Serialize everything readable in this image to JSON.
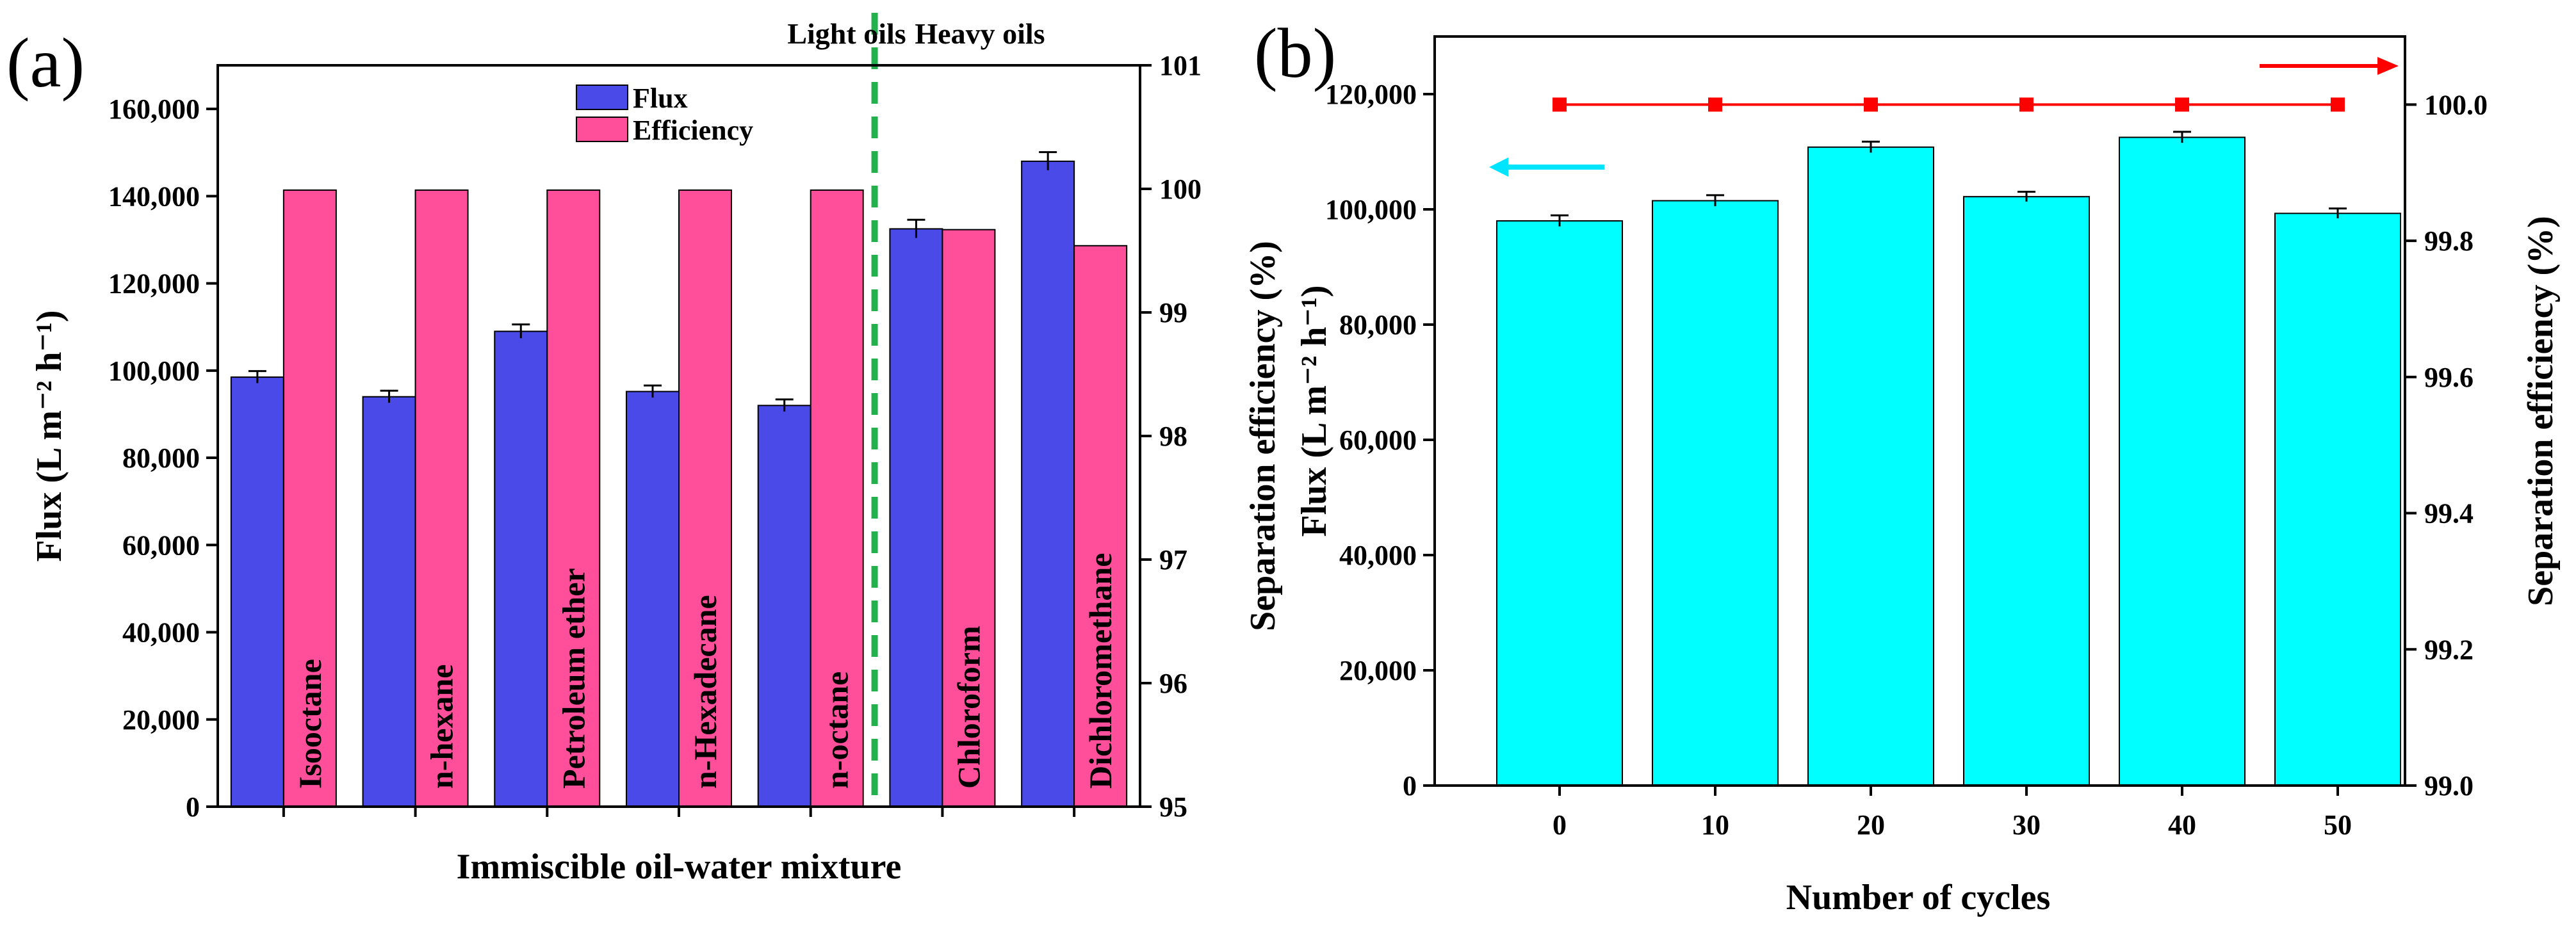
{
  "chart_data": [
    {
      "panel": "(a)",
      "type": "bar",
      "xlabel": "Immiscible oil-water mixture",
      "ylabel": "Flux (L m⁻² h⁻¹)",
      "y2label": "Separation efficiency (%)",
      "ylim": [
        0,
        170000
      ],
      "y2lim": [
        95,
        101
      ],
      "yticks": [
        0,
        20000,
        40000,
        60000,
        80000,
        100000,
        120000,
        140000,
        160000
      ],
      "ytick_labels": [
        "0",
        "20,000",
        "40,000",
        "60,000",
        "80,000",
        "100,000",
        "120,000",
        "140,000",
        "160,000"
      ],
      "y2ticks": [
        95,
        96,
        97,
        98,
        99,
        100,
        101
      ],
      "y2tick_labels": [
        "95",
        "96",
        "97",
        "98",
        "99",
        "100",
        "101"
      ],
      "categories": [
        "Isooctane",
        "n-hexane",
        "Petroleum ether",
        "n-Hexadecane",
        "n-octane",
        "Chloroform",
        "Dichloromethane"
      ],
      "series": [
        {
          "name": "Flux",
          "axis": "left",
          "color": "#4a4ae8",
          "values": [
            98500,
            94000,
            109000,
            95200,
            92000,
            132500,
            148000
          ],
          "errors": [
            500,
            500,
            700,
            500,
            500,
            1200,
            1200
          ]
        },
        {
          "name": "Efficiency",
          "axis": "right",
          "color": "#ff4f9b",
          "values": [
            99.99,
            99.99,
            99.99,
            99.99,
            99.99,
            99.67,
            99.54
          ]
        }
      ],
      "legend": [
        "Flux",
        "Efficiency"
      ],
      "regions": [
        "Light oils",
        "Heavy oils"
      ],
      "divider_after_index": 4,
      "divider_color": "#22b14c"
    },
    {
      "panel": "(b)",
      "type": "bar",
      "xlabel": "Number of cycles",
      "ylabel": "Flux (L m⁻² h⁻¹)",
      "y2label": "Separation efficiency (%)",
      "ylim": [
        0,
        130000
      ],
      "y2lim": [
        99.0,
        100.1
      ],
      "yticks": [
        0,
        20000,
        40000,
        60000,
        80000,
        100000,
        120000
      ],
      "ytick_labels": [
        "0",
        "20,000",
        "40,000",
        "60,000",
        "80,000",
        "100,000",
        "120,000"
      ],
      "y2ticks": [
        99.0,
        99.2,
        99.4,
        99.6,
        99.8,
        100.0
      ],
      "y2tick_labels": [
        "99.0",
        "99.2",
        "99.4",
        "99.6",
        "99.8",
        "100.0"
      ],
      "categories": [
        "0",
        "10",
        "20",
        "30",
        "40",
        "50"
      ],
      "series": [
        {
          "name": "Flux",
          "axis": "left",
          "color": "#00ffff",
          "values": [
            98000,
            101500,
            110800,
            102200,
            112500,
            99300
          ],
          "errors": [
            400,
            400,
            400,
            300,
            400,
            300
          ]
        },
        {
          "name": "Separation efficiency",
          "axis": "right",
          "color": "#ff0000",
          "type": "line",
          "values": [
            100.0,
            100.0,
            100.0,
            100.0,
            100.0,
            100.0
          ]
        }
      ],
      "axis_indicator_colors": {
        "left": "#00e5ff",
        "right": "#ff0000"
      }
    }
  ]
}
